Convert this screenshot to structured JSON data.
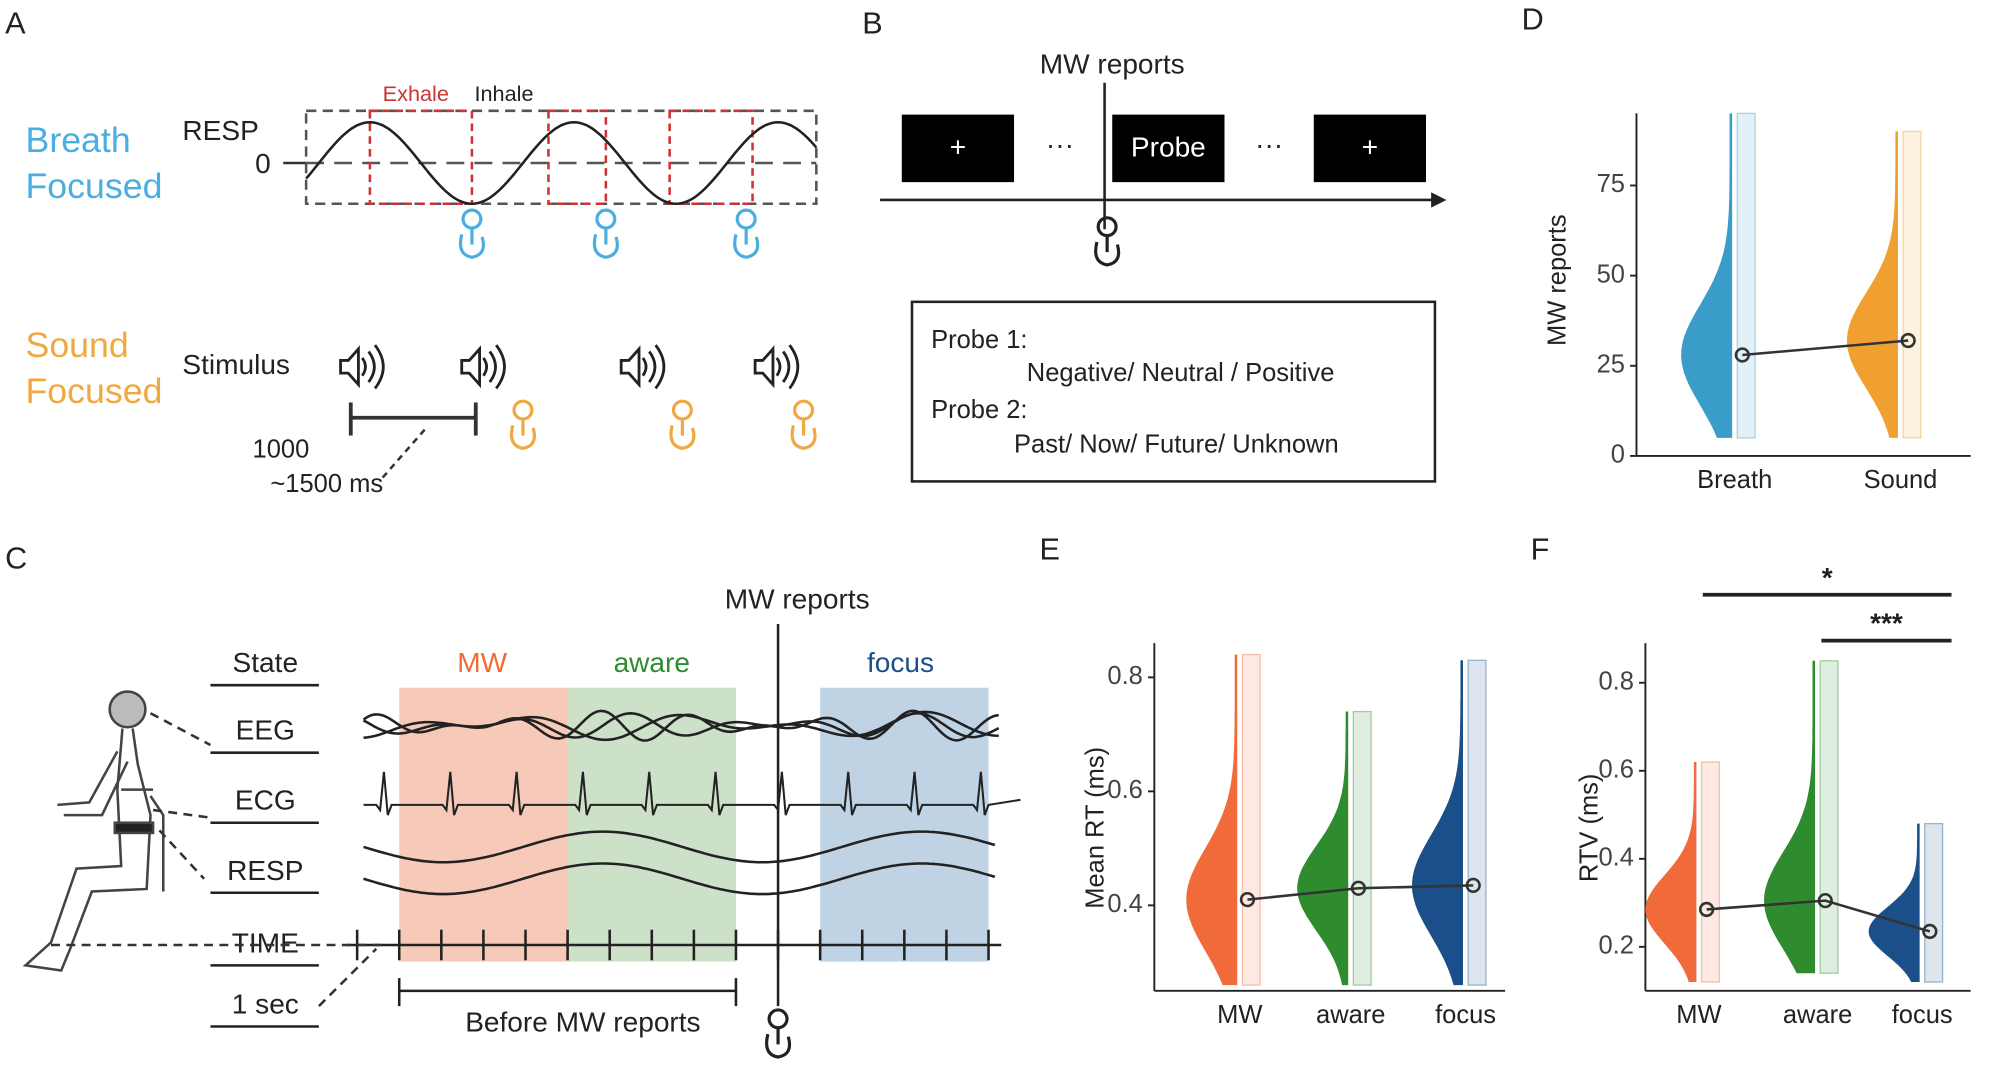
{
  "panels": {
    "a": {
      "label": "A",
      "breath": [
        "Breath",
        "Focused"
      ],
      "sound": [
        "Sound",
        "Focused"
      ],
      "resp": "RESP",
      "zero": "0",
      "exhale": "Exhale",
      "inhale": "Inhale",
      "stimulus": "Stimulus",
      "interval": [
        "1000",
        "~1500 ms"
      ]
    },
    "b": {
      "label": "B",
      "mw_reports": "MW reports",
      "fixation": "+",
      "probe": "Probe",
      "ellipsis": "···",
      "probe1": "Probe 1:",
      "probe1_options": "Negative/ Neutral / Positive",
      "probe2": "Probe 2:",
      "probe2_options": "Past/ Now/ Future/ Unknown"
    },
    "c": {
      "label": "C",
      "mw_reports": "MW reports",
      "rows": [
        "State",
        "EEG",
        "ECG",
        "RESP",
        "TIME",
        "1 sec"
      ],
      "states": [
        "MW",
        "aware",
        "focus"
      ],
      "before": "Before MW reports"
    }
  },
  "chart_data": [
    {
      "type": "violin",
      "panel": "D",
      "ylabel": "MW reports",
      "categories": [
        "Breath",
        "Sound"
      ],
      "values": [
        28,
        32
      ],
      "min": [
        5,
        5
      ],
      "max": [
        95,
        90
      ],
      "colors": [
        "#3a9cc8",
        "#f0a030"
      ],
      "ylim": [
        0,
        95
      ],
      "yticks": [
        0,
        25,
        50,
        75
      ]
    },
    {
      "type": "violin",
      "panel": "E",
      "ylabel": "Mean RT (ms)",
      "categories": [
        "MW",
        "aware",
        "focus"
      ],
      "values": [
        0.41,
        0.43,
        0.435
      ],
      "min": [
        0.26,
        0.26,
        0.26
      ],
      "max": [
        0.84,
        0.74,
        0.83
      ],
      "colors": [
        "#f06a3a",
        "#2e8b2e",
        "#1a4f8a"
      ],
      "ylim": [
        0.25,
        0.86
      ],
      "yticks": [
        0.4,
        0.6,
        0.8
      ]
    },
    {
      "type": "violin",
      "panel": "F",
      "ylabel": "RTV (ms)",
      "categories": [
        "MW",
        "aware",
        "focus"
      ],
      "values": [
        0.285,
        0.305,
        0.235
      ],
      "min": [
        0.12,
        0.14,
        0.12
      ],
      "max": [
        0.62,
        0.85,
        0.48
      ],
      "colors": [
        "#f06a3a",
        "#2e8b2e",
        "#1a4f8a"
      ],
      "ylim": [
        0.1,
        0.89
      ],
      "yticks": [
        0.2,
        0.4,
        0.6,
        0.8
      ],
      "significance": [
        {
          "label": "*",
          "pair": [
            "MW",
            "focus"
          ]
        },
        {
          "label": "***",
          "pair": [
            "aware",
            "focus"
          ]
        }
      ]
    }
  ]
}
